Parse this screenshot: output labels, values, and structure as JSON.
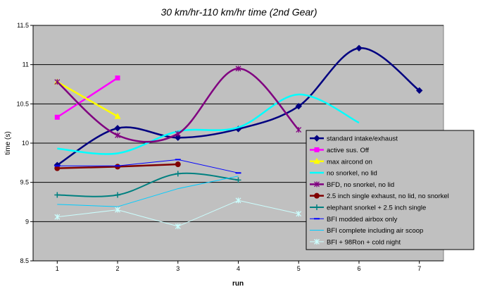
{
  "chart_data": {
    "type": "line",
    "title": "30 km/hr-110 km/hr time (2nd Gear)",
    "xlabel": "run",
    "ylabel": "time (s)",
    "xlim": [
      0.6,
      7.4
    ],
    "ylim": [
      8.5,
      11.5
    ],
    "x_ticks": [
      "1",
      "2",
      "3",
      "4",
      "5",
      "6",
      "7"
    ],
    "y_ticks": [
      "8.5",
      "9",
      "9.5",
      "10",
      "10.5",
      "11",
      "11.5"
    ],
    "plot_background": "#c0c0c0",
    "grid": true,
    "legend_position": "right",
    "series": [
      {
        "name": "standard intake/exhaust",
        "color": "#000080",
        "marker": "diamond",
        "width": 2.5,
        "smooth": true,
        "x": [
          1,
          2,
          3,
          4,
          5,
          6,
          7
        ],
        "y": [
          9.72,
          10.19,
          10.07,
          10.18,
          10.47,
          11.21,
          10.67
        ]
      },
      {
        "name": "active sus. Off",
        "color": "#ff00ff",
        "marker": "square",
        "width": 2.5,
        "smooth": false,
        "x": [
          1,
          2
        ],
        "y": [
          10.33,
          10.83
        ]
      },
      {
        "name": "max aircond on",
        "color": "#ffff00",
        "marker": "triangle",
        "width": 2.5,
        "smooth": false,
        "x": [
          1,
          2
        ],
        "y": [
          10.78,
          10.34
        ]
      },
      {
        "name": "no snorkel, no lid",
        "color": "#00ffff",
        "marker": "none",
        "width": 2.5,
        "smooth": true,
        "x": [
          1,
          2,
          3,
          4,
          5,
          6
        ],
        "y": [
          9.93,
          9.87,
          10.15,
          10.2,
          10.62,
          10.26
        ]
      },
      {
        "name": "BFD, no snorkel, no lid",
        "color": "#800080",
        "marker": "star",
        "width": 2.5,
        "smooth": true,
        "x": [
          1,
          2,
          3,
          4,
          5
        ],
        "y": [
          10.78,
          10.1,
          10.12,
          10.95,
          10.17
        ]
      },
      {
        "name": "2.5 inch single exhaust, no lid, no snorkel",
        "color": "#800000",
        "marker": "circle",
        "width": 2.5,
        "smooth": false,
        "x": [
          1,
          2,
          3
        ],
        "y": [
          9.68,
          9.7,
          9.73
        ]
      },
      {
        "name": "elephant snorkel + 2.5 inch single",
        "color": "#008080",
        "marker": "plus",
        "width": 2.0,
        "smooth": true,
        "x": [
          1,
          2,
          3,
          4
        ],
        "y": [
          9.34,
          9.34,
          9.61,
          9.53
        ]
      },
      {
        "name": "BFI modded airbox only",
        "color": "#0000ff",
        "marker": "dash",
        "width": 1.0,
        "smooth": false,
        "x": [
          1,
          2,
          3,
          4
        ],
        "y": [
          9.71,
          9.71,
          9.79,
          9.62
        ]
      },
      {
        "name": "BFI complete including air scoop",
        "color": "#00ccff",
        "marker": "none",
        "width": 1.0,
        "smooth": false,
        "x": [
          1,
          2,
          3,
          4
        ],
        "y": [
          9.22,
          9.19,
          9.42,
          9.58
        ]
      },
      {
        "name": "BFI + 98Ron + cold night",
        "color": "#ccffff",
        "marker": "star",
        "width": 1.0,
        "smooth": false,
        "x": [
          1,
          2,
          3,
          4,
          5
        ],
        "y": [
          9.06,
          9.15,
          8.94,
          9.27,
          9.1
        ]
      }
    ]
  }
}
